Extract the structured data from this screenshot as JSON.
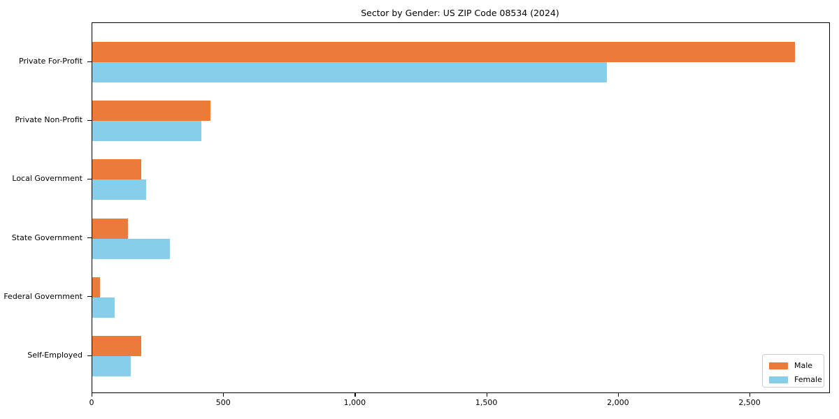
{
  "chart_data": {
    "type": "bar",
    "orientation": "horizontal",
    "title": "Sector by Gender: US ZIP Code 08534 (2024)",
    "categories": [
      "Private For-Profit",
      "Private Non-Profit",
      "Local Government",
      "State Government",
      "Federal Government",
      "Self-Employed"
    ],
    "series": [
      {
        "name": "Male",
        "color": "#EB7A3B",
        "values": [
          2670,
          450,
          185,
          135,
          30,
          185
        ]
      },
      {
        "name": "Female",
        "color": "#87CEEB",
        "values": [
          1955,
          415,
          205,
          295,
          85,
          145
        ]
      }
    ],
    "xlabel": "",
    "ylabel": "",
    "xlim": [
      0,
      2800
    ],
    "xticks": [
      0,
      500,
      1000,
      1500,
      2000,
      2500
    ],
    "xtick_labels": [
      "0",
      "500",
      "1,000",
      "1,500",
      "2,000",
      "2,500"
    ],
    "grid": false,
    "legend": {
      "position": "lower right",
      "entries": [
        "Male",
        "Female"
      ]
    }
  }
}
